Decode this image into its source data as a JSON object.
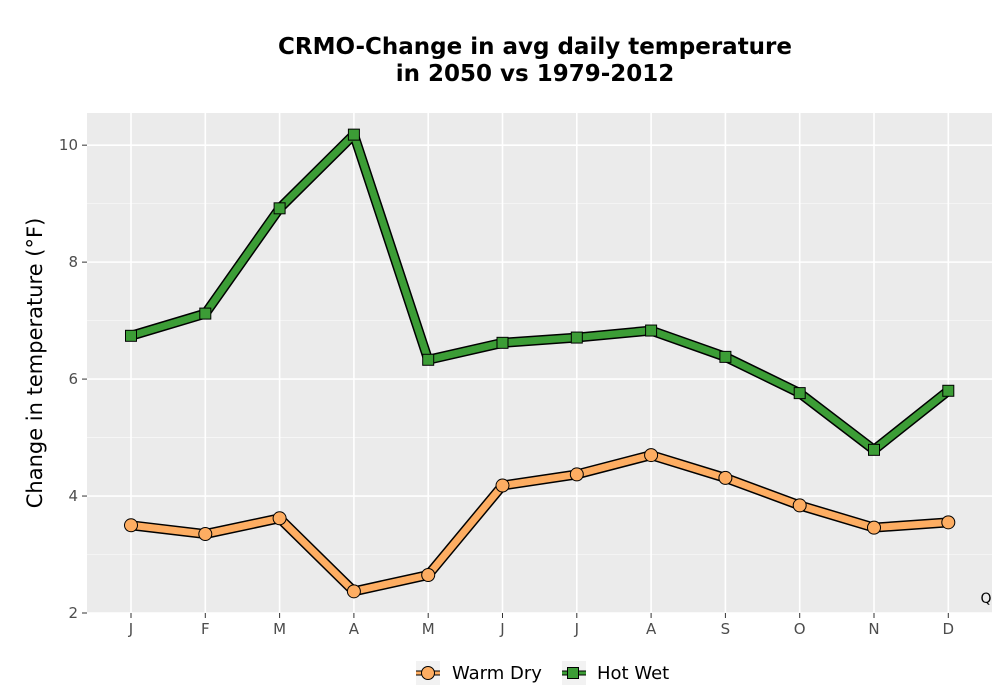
{
  "chart_data": {
    "type": "line",
    "title_line1": "CRMO-Change in avg daily temperature",
    "title_line2": "in 2050 vs 1979-2012",
    "xlabel": "",
    "ylabel": "Change in temperature (°F)",
    "categories": [
      "J",
      "F",
      "M",
      "A",
      "M",
      "J",
      "J",
      "A",
      "S",
      "O",
      "N",
      "D"
    ],
    "ylim": [
      2,
      10.55
    ],
    "yticks": [
      2,
      4,
      6,
      8,
      10
    ],
    "grid": true,
    "legend_position": "bottom",
    "annotation": "Q",
    "series": [
      {
        "name": "Warm Dry",
        "marker": "circle",
        "color": "#fdad62",
        "values": [
          3.5,
          3.35,
          3.62,
          2.37,
          2.65,
          4.18,
          4.37,
          4.7,
          4.31,
          3.84,
          3.46,
          3.55
        ]
      },
      {
        "name": "Hot Wet",
        "marker": "square",
        "color": "#3c9d36",
        "values": [
          6.74,
          7.12,
          8.92,
          10.18,
          6.33,
          6.62,
          6.71,
          6.83,
          6.38,
          5.76,
          4.79,
          5.8
        ]
      }
    ]
  }
}
